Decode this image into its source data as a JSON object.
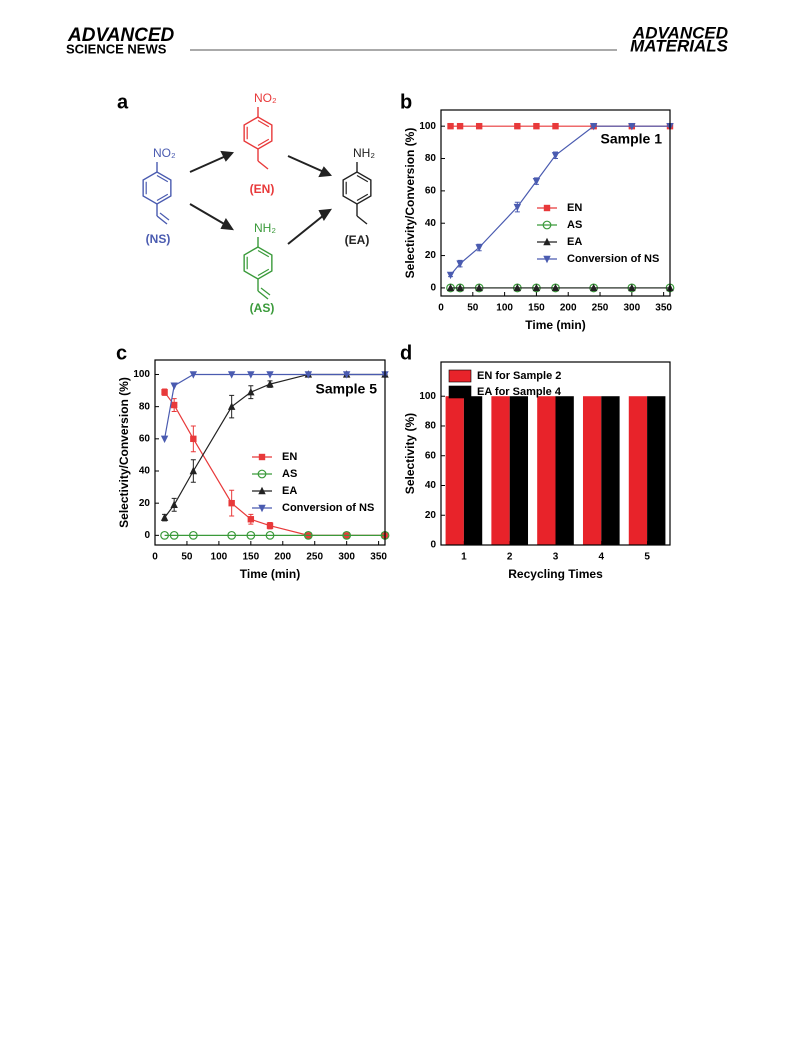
{
  "header": {
    "left_top": "ADVANCED",
    "left_bottom": "SCIENCE NEWS",
    "right_top": "ADVANCED",
    "right_bottom": "MATERIALS"
  },
  "figure": {
    "panel_labels": [
      "a",
      "b",
      "c",
      "d"
    ]
  },
  "scheme": {
    "compounds": [
      {
        "group": "NO₂",
        "label": "(NS)",
        "color": "#4a5bb0"
      },
      {
        "group": "NO₂",
        "label": "(EN)",
        "color": "#e8393a"
      },
      {
        "group": "NH₂",
        "label": "(AS)",
        "color": "#3a9a3a"
      },
      {
        "group": "NH₂",
        "label": "(EA)",
        "color": "#222222"
      }
    ]
  },
  "chart_data": [
    {
      "type": "line",
      "x": [
        15,
        30,
        60,
        120,
        150,
        180,
        240,
        300,
        360
      ],
      "xlim": [
        0,
        360
      ],
      "xticks": [
        0,
        50,
        100,
        150,
        200,
        250,
        300,
        350
      ],
      "ylim": [
        -5,
        110
      ],
      "yticks": [
        0,
        20,
        40,
        60,
        80,
        100
      ],
      "xlabel": "Time (min)",
      "ylabel": "Selectivity/Conversion (%)",
      "annotation": "Sample 1",
      "legend": "lower right",
      "series": [
        {
          "name": "EN",
          "color": "#e8393a",
          "marker": "square",
          "values": [
            100,
            100,
            100,
            100,
            100,
            100,
            100,
            100,
            100
          ]
        },
        {
          "name": "AS",
          "color": "#3a9a3a",
          "marker": "open-circle",
          "values": [
            0,
            0,
            0,
            0,
            0,
            0,
            0,
            0,
            0
          ]
        },
        {
          "name": "EA",
          "color": "#222222",
          "marker": "triangle-up",
          "values": [
            0,
            0,
            0,
            0,
            0,
            0,
            0,
            0,
            0
          ]
        },
        {
          "name": "Conversion of NS",
          "color": "#4a5bb0",
          "marker": "triangle-down",
          "values": [
            8,
            15,
            25,
            50,
            66,
            82,
            100,
            100,
            100
          ],
          "errors": [
            1,
            2,
            2,
            3,
            2,
            2,
            0,
            0,
            0
          ]
        }
      ]
    },
    {
      "type": "line",
      "x": [
        15,
        30,
        60,
        120,
        150,
        180,
        240,
        300,
        360
      ],
      "xlim": [
        0,
        360
      ],
      "xticks": [
        0,
        50,
        100,
        150,
        200,
        250,
        300,
        350
      ],
      "ylim": [
        -6,
        109
      ],
      "yticks": [
        0,
        20,
        40,
        60,
        80,
        100
      ],
      "xlabel": "Time (min)",
      "ylabel": "Selectivity/Conversion (%)",
      "annotation": "Sample 5",
      "legend": "lower right",
      "series": [
        {
          "name": "EN",
          "color": "#e8393a",
          "marker": "square",
          "values": [
            89,
            81,
            60,
            20,
            10,
            6,
            0,
            0,
            0
          ],
          "errors": [
            2,
            4,
            8,
            8,
            3,
            2,
            0,
            0,
            0
          ]
        },
        {
          "name": "AS",
          "color": "#3a9a3a",
          "marker": "open-circle",
          "values": [
            0,
            0,
            0,
            0,
            0,
            0,
            0,
            0,
            0
          ]
        },
        {
          "name": "EA",
          "color": "#222222",
          "marker": "triangle-up",
          "values": [
            11,
            19,
            40,
            80,
            89,
            94,
            100,
            100,
            100
          ],
          "errors": [
            2,
            4,
            7,
            7,
            4,
            2,
            0,
            0,
            0
          ]
        },
        {
          "name": "Conversion of NS",
          "color": "#4a5bb0",
          "marker": "triangle-down",
          "values": [
            60,
            93,
            100,
            100,
            100,
            100,
            100,
            100,
            100
          ]
        }
      ]
    },
    {
      "type": "bar",
      "categories": [
        "1",
        "2",
        "3",
        "4",
        "5"
      ],
      "ylim": [
        0,
        123
      ],
      "yticks": [
        0,
        20,
        40,
        60,
        80,
        100
      ],
      "xlabel": "Recycling Times",
      "ylabel": "Selectivity (%)",
      "legend": "upper left",
      "series": [
        {
          "name": "EN for Sample 2",
          "color": "#e8232a",
          "values": [
            100,
            100,
            100,
            100,
            100
          ]
        },
        {
          "name": "EA for Sample 4",
          "color": "#000000",
          "values": [
            100,
            100,
            100,
            100,
            100
          ]
        }
      ]
    }
  ]
}
